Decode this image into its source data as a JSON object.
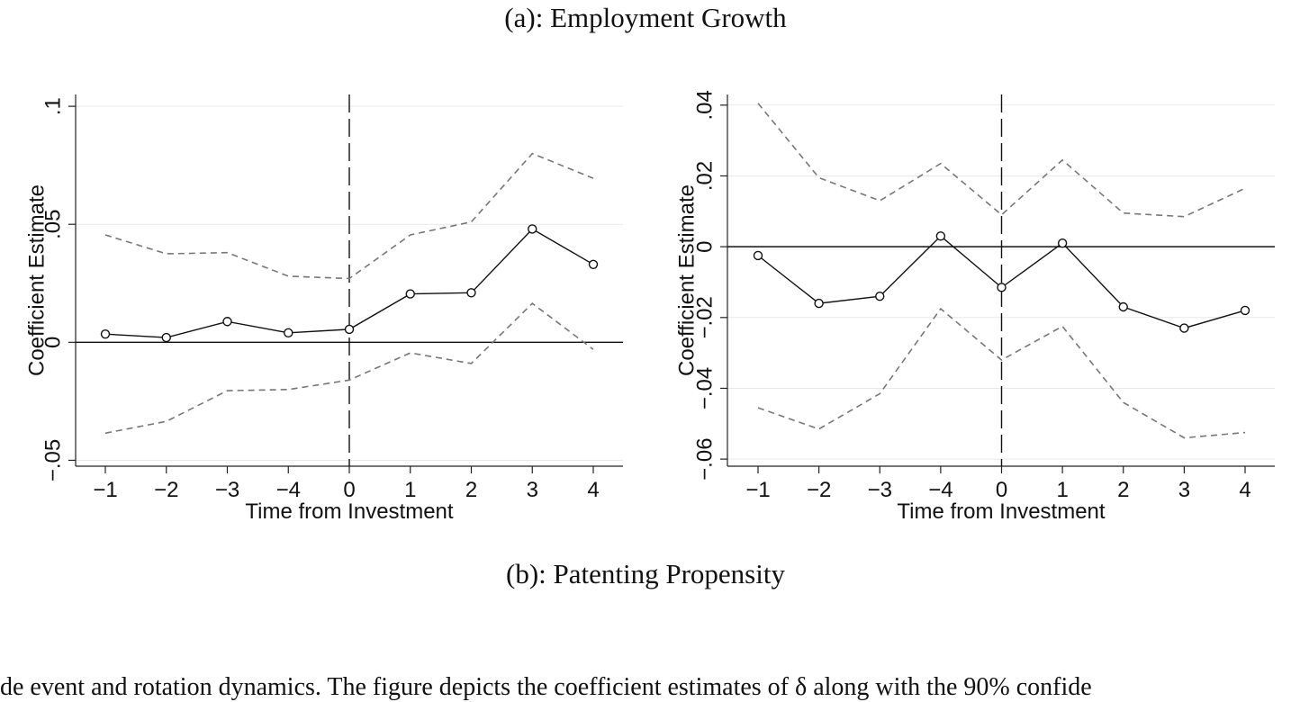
{
  "captions": {
    "top": "(a): Employment Growth",
    "bottom": "(b): Patenting Propensity"
  },
  "body_text": "de  event and  rotation  dynamics.  The figure  depicts  the coefficient estimates of  δ along with the 90% confide",
  "chart_data": [
    {
      "type": "line",
      "title": "",
      "xlabel": "Time from Investment",
      "ylabel": "Coefficient Estimate",
      "categories": [
        "−1",
        "−2",
        "−3",
        "−4",
        "0",
        "1",
        "2",
        "3",
        "4"
      ],
      "ylim": [
        -0.0525,
        0.105
      ],
      "yticks": [
        -0.05,
        0,
        0.05,
        0.1
      ],
      "ytick_labels": [
        "−.05",
        "0",
        ".05",
        ".1"
      ],
      "grid": true,
      "reference_lines": {
        "horizontal_at": 0,
        "vertical_at_category": "0"
      },
      "series": [
        {
          "role": "estimate",
          "color": "#111111",
          "markers": true,
          "values": [
            0.0035,
            0.002,
            0.0088,
            0.004,
            0.0055,
            0.0205,
            0.021,
            0.048,
            0.033
          ]
        },
        {
          "role": "upper",
          "color": "#777777",
          "dashed": true,
          "values": [
            0.0455,
            0.0375,
            0.038,
            0.028,
            0.027,
            0.0455,
            0.051,
            0.08,
            0.0695
          ]
        },
        {
          "role": "lower",
          "color": "#777777",
          "dashed": true,
          "values": [
            -0.0385,
            -0.0335,
            -0.0205,
            -0.02,
            -0.016,
            -0.0045,
            -0.009,
            0.0165,
            -0.003
          ]
        }
      ]
    },
    {
      "type": "line",
      "title": "",
      "xlabel": "Time from Investment",
      "ylabel": "Coefficient Estimate",
      "categories": [
        "−1",
        "−2",
        "−3",
        "−4",
        "0",
        "1",
        "2",
        "3",
        "4"
      ],
      "ylim": [
        -0.062,
        0.043
      ],
      "yticks": [
        -0.06,
        -0.04,
        -0.02,
        0,
        0.02,
        0.04
      ],
      "ytick_labels": [
        "−.06",
        "−.04",
        "−.02",
        "0",
        ".02",
        ".04"
      ],
      "grid": true,
      "reference_lines": {
        "horizontal_at": 0,
        "vertical_at_category": "0"
      },
      "series": [
        {
          "role": "estimate",
          "color": "#111111",
          "markers": true,
          "values": [
            -0.0025,
            -0.016,
            -0.014,
            0.003,
            -0.0115,
            0.001,
            -0.017,
            -0.023,
            -0.018
          ]
        },
        {
          "role": "upper",
          "color": "#777777",
          "dashed": true,
          "values": [
            0.0405,
            0.0195,
            0.013,
            0.0235,
            0.009,
            0.0245,
            0.0095,
            0.0085,
            0.0165
          ]
        },
        {
          "role": "lower",
          "color": "#777777",
          "dashed": true,
          "values": [
            -0.0455,
            -0.0515,
            -0.0415,
            -0.0175,
            -0.032,
            -0.0225,
            -0.044,
            -0.054,
            -0.0525
          ]
        }
      ]
    }
  ]
}
